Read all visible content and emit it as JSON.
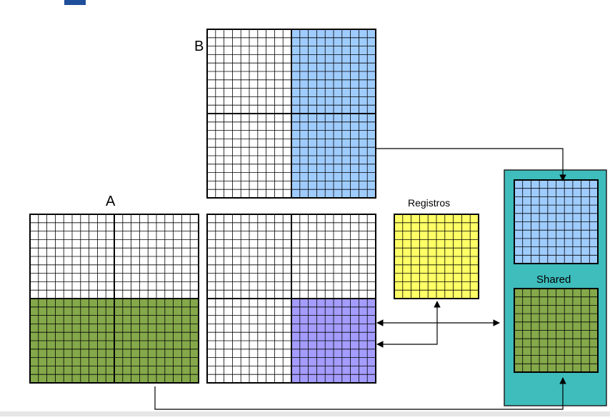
{
  "labels": {
    "matrix_a": "A",
    "matrix_b": "B",
    "registers": "Registros",
    "shared": "Shared"
  },
  "colors": {
    "blue_tile": "#9fccff",
    "green_tile": "#84a84a",
    "purple_tile": "#a49cff",
    "yellow_registers": "#ffff66",
    "shared_container": "#3fbcbc",
    "grid_line": "#000000",
    "title_fragment": "#1f4e9a"
  },
  "diagram": {
    "matrix_a": {
      "subdivisions": 2,
      "cells_per_block": 10,
      "highlighted_blocks": "bottom-row",
      "highlight_color": "green_tile"
    },
    "matrix_b": {
      "subdivisions": 2,
      "cells_per_block": 10,
      "highlighted_blocks": "right-column",
      "highlight_color": "blue_tile"
    },
    "matrix_c": {
      "subdivisions": 2,
      "cells_per_block": 10,
      "highlighted_blocks": "bottom-right",
      "highlight_color": "purple_tile"
    },
    "registers": {
      "cells": 10,
      "color": "yellow_registers"
    },
    "shared_memory": {
      "tiles": [
        "blue_tile",
        "green_tile"
      ],
      "cells": 10
    }
  }
}
